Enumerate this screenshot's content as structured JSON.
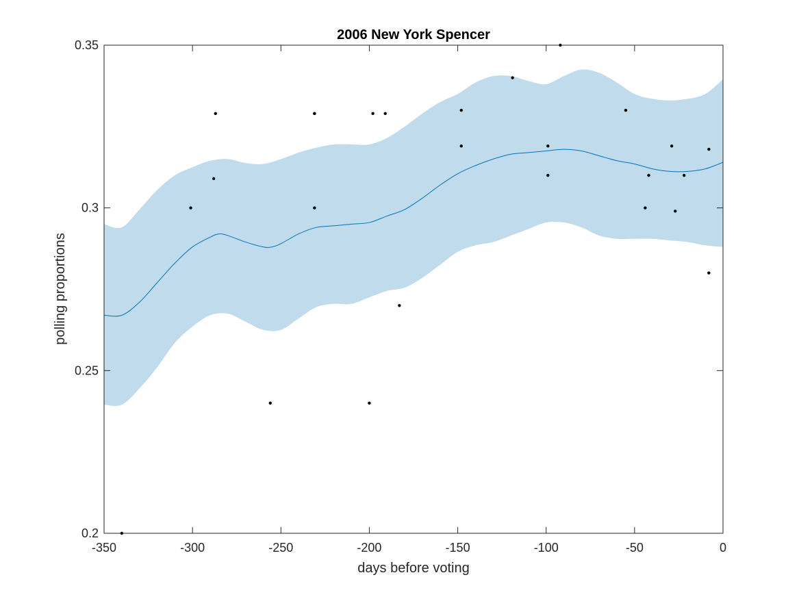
{
  "chart_data": {
    "type": "line",
    "title": "2006 New York Spencer",
    "xlabel": "days before voting",
    "ylabel": "polling proportions",
    "xlim": [
      -350,
      0
    ],
    "ylim": [
      0.2,
      0.35
    ],
    "grid": false,
    "x_ticks": [
      -350,
      -300,
      -250,
      -200,
      -150,
      -100,
      -50,
      0
    ],
    "x_tick_labels": [
      "-350",
      "-300",
      "-250",
      "-200",
      "-150",
      "-100",
      "-50",
      "0"
    ],
    "y_ticks": [
      0.2,
      0.25,
      0.3,
      0.35
    ],
    "y_tick_labels": [
      "0.2",
      "0.25",
      "0.3",
      "0.35"
    ],
    "colors": {
      "band": "#c0dcec",
      "line": "#0072bd",
      "points": "#000000"
    },
    "mean": {
      "x": [
        -350,
        -340,
        -330,
        -320,
        -310,
        -300,
        -290,
        -285,
        -280,
        -270,
        -260,
        -255,
        -250,
        -240,
        -230,
        -220,
        -210,
        -200,
        -190,
        -180,
        -170,
        -160,
        -150,
        -140,
        -130,
        -120,
        -110,
        -100,
        -90,
        -80,
        -70,
        -60,
        -50,
        -40,
        -30,
        -20,
        -10,
        0
      ],
      "y": [
        0.267,
        0.267,
        0.271,
        0.277,
        0.283,
        0.288,
        0.291,
        0.292,
        0.2915,
        0.2895,
        0.288,
        0.288,
        0.289,
        0.292,
        0.294,
        0.2945,
        0.295,
        0.2955,
        0.2975,
        0.2995,
        0.303,
        0.307,
        0.3105,
        0.313,
        0.315,
        0.3165,
        0.317,
        0.3175,
        0.318,
        0.3175,
        0.316,
        0.3145,
        0.3135,
        0.312,
        0.3112,
        0.3112,
        0.312,
        0.314
      ]
    },
    "band": {
      "x": [
        -350,
        -340,
        -330,
        -320,
        -310,
        -300,
        -290,
        -280,
        -270,
        -260,
        -250,
        -240,
        -230,
        -220,
        -210,
        -200,
        -190,
        -180,
        -170,
        -160,
        -150,
        -140,
        -130,
        -120,
        -110,
        -100,
        -90,
        -80,
        -70,
        -60,
        -50,
        -40,
        -30,
        -20,
        -10,
        0
      ],
      "upper": [
        0.295,
        0.294,
        0.2995,
        0.3055,
        0.31,
        0.3125,
        0.3145,
        0.315,
        0.3138,
        0.3135,
        0.315,
        0.317,
        0.3185,
        0.3195,
        0.3195,
        0.3195,
        0.3215,
        0.325,
        0.329,
        0.3325,
        0.335,
        0.3385,
        0.3405,
        0.3405,
        0.339,
        0.338,
        0.3405,
        0.3425,
        0.3415,
        0.3385,
        0.335,
        0.3335,
        0.333,
        0.3335,
        0.335,
        0.3395
      ],
      "lower": [
        0.2395,
        0.2395,
        0.2445,
        0.251,
        0.2585,
        0.2635,
        0.267,
        0.2675,
        0.265,
        0.2625,
        0.2625,
        0.266,
        0.2695,
        0.2705,
        0.2705,
        0.2725,
        0.2745,
        0.2755,
        0.2785,
        0.2825,
        0.2865,
        0.2885,
        0.2895,
        0.2915,
        0.2935,
        0.2955,
        0.2955,
        0.294,
        0.2915,
        0.2905,
        0.2905,
        0.2905,
        0.29,
        0.2895,
        0.2885,
        0.288
      ]
    },
    "points": {
      "x": [
        -340,
        -301,
        -288,
        -287,
        -256,
        -231,
        -231,
        -231,
        -200,
        -198,
        -191,
        -183,
        -148,
        -148,
        -119,
        -99,
        -99,
        -92,
        -55,
        -44,
        -42,
        -29,
        -27,
        -22,
        -8,
        -8
      ],
      "y": [
        0.2,
        0.3,
        0.309,
        0.329,
        0.24,
        0.329,
        0.3,
        0.329,
        0.24,
        0.329,
        0.329,
        0.27,
        0.33,
        0.319,
        0.34,
        0.319,
        0.31,
        0.35,
        0.33,
        0.3,
        0.31,
        0.319,
        0.299,
        0.31,
        0.318,
        0.28
      ]
    }
  }
}
